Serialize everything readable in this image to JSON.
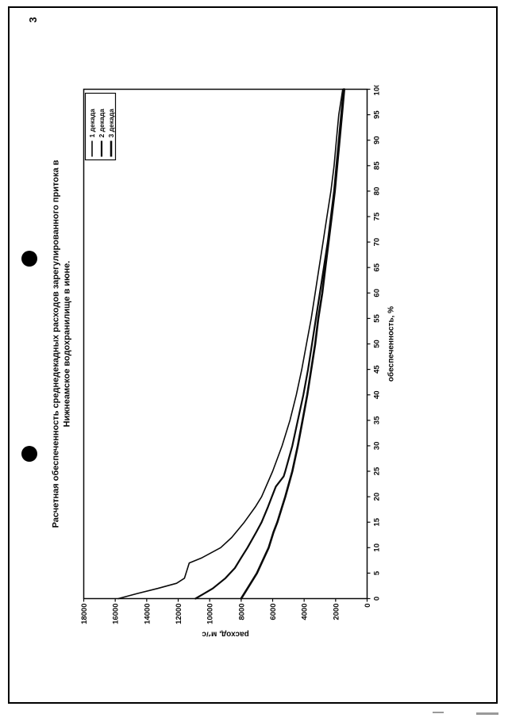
{
  "page": {
    "number": "3"
  },
  "chart_data": {
    "type": "line",
    "title_lines": [
      "Расчетная обеспеченность среднедекадных расходов зарегулированного притока в",
      "Нижнеамское водохранилище в июне."
    ],
    "xlabel": "обеспеченность, %",
    "ylabel": "расход, м³/с",
    "xlim": [
      0,
      100
    ],
    "ylim": [
      0,
      18000
    ],
    "x_tick_step": 5,
    "y_tick_step": 2000,
    "grid": false,
    "legend_position": "top-right",
    "line_color": "#0a0a0a",
    "series": [
      {
        "name": "1 декада",
        "stroke_width": 1.6,
        "points": [
          [
            0,
            15800
          ],
          [
            1,
            14600
          ],
          [
            2,
            13300
          ],
          [
            3,
            12100
          ],
          [
            4,
            11600
          ],
          [
            7,
            11300
          ],
          [
            8,
            10500
          ],
          [
            10,
            9300
          ],
          [
            12,
            8600
          ],
          [
            15,
            7800
          ],
          [
            18,
            7100
          ],
          [
            20,
            6700
          ],
          [
            25,
            6000
          ],
          [
            30,
            5400
          ],
          [
            35,
            4900
          ],
          [
            40,
            4500
          ],
          [
            45,
            4150
          ],
          [
            50,
            3850
          ],
          [
            55,
            3550
          ],
          [
            60,
            3300
          ],
          [
            65,
            3050
          ],
          [
            70,
            2800
          ],
          [
            75,
            2550
          ],
          [
            80,
            2300
          ],
          [
            85,
            2100
          ],
          [
            90,
            1950
          ],
          [
            95,
            1800
          ],
          [
            100,
            1550
          ]
        ]
      },
      {
        "name": "2 декада",
        "stroke_width": 2.2,
        "points": [
          [
            0,
            10900
          ],
          [
            2,
            9800
          ],
          [
            4,
            9000
          ],
          [
            6,
            8400
          ],
          [
            8,
            8000
          ],
          [
            10,
            7600
          ],
          [
            13,
            7050
          ],
          [
            15,
            6700
          ],
          [
            18,
            6300
          ],
          [
            20,
            6050
          ],
          [
            22,
            5800
          ],
          [
            24,
            5300
          ],
          [
            25,
            5200
          ],
          [
            30,
            4750
          ],
          [
            35,
            4400
          ],
          [
            40,
            4050
          ],
          [
            45,
            3750
          ],
          [
            50,
            3500
          ],
          [
            55,
            3250
          ],
          [
            60,
            3000
          ],
          [
            65,
            2750
          ],
          [
            70,
            2500
          ],
          [
            75,
            2300
          ],
          [
            80,
            2100
          ],
          [
            85,
            1950
          ],
          [
            90,
            1800
          ],
          [
            95,
            1650
          ],
          [
            100,
            1500
          ]
        ]
      },
      {
        "name": "3 декада",
        "stroke_width": 2.6,
        "points": [
          [
            0,
            8000
          ],
          [
            2,
            7600
          ],
          [
            5,
            7000
          ],
          [
            8,
            6550
          ],
          [
            10,
            6250
          ],
          [
            13,
            5950
          ],
          [
            15,
            5700
          ],
          [
            18,
            5400
          ],
          [
            20,
            5200
          ],
          [
            25,
            4750
          ],
          [
            30,
            4400
          ],
          [
            35,
            4100
          ],
          [
            40,
            3800
          ],
          [
            45,
            3550
          ],
          [
            50,
            3300
          ],
          [
            55,
            3100
          ],
          [
            60,
            2850
          ],
          [
            65,
            2650
          ],
          [
            70,
            2450
          ],
          [
            75,
            2250
          ],
          [
            80,
            2050
          ],
          [
            85,
            1900
          ],
          [
            90,
            1750
          ],
          [
            95,
            1600
          ],
          [
            100,
            1450
          ]
        ]
      }
    ]
  }
}
